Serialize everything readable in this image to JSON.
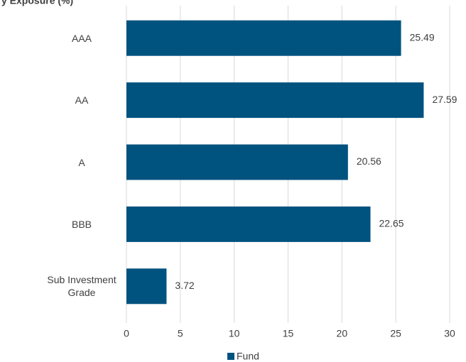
{
  "chart_data": {
    "type": "bar",
    "orientation": "horizontal",
    "title": "y Exposure (%)",
    "categories": [
      "AAA",
      "AA",
      "A",
      "BBB",
      "Sub Investment Grade"
    ],
    "series": [
      {
        "name": "Fund",
        "color": "#00527f",
        "values": [
          25.49,
          27.59,
          20.56,
          22.65,
          3.72
        ]
      }
    ],
    "xlim": [
      0,
      30
    ],
    "xticks": [
      0,
      5,
      10,
      15,
      20,
      25,
      30
    ],
    "grid": true,
    "legend": "bottom"
  }
}
